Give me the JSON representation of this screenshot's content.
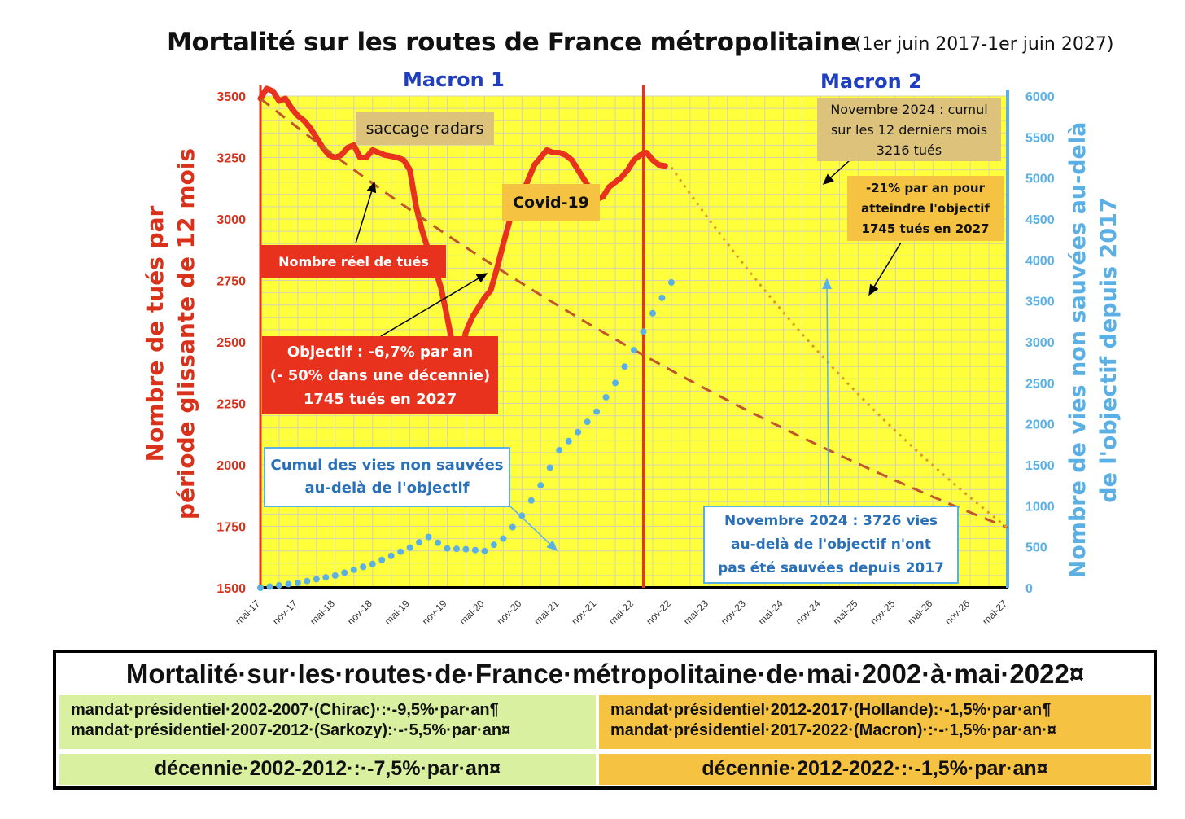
{
  "title": "Mortalité sur les routes de France métropolitaine",
  "subtitle": "(1er juin 2017-1er juin 2027)",
  "periods": [
    "Macron 1",
    "Macron 2"
  ],
  "colors": {
    "plot_bg": "#ffff3c",
    "actual": "#e8321e",
    "objective": "#c0562a",
    "cumulative": "#5ab0e4",
    "table_green": "#d8f0a0",
    "table_orange": "#f5c242"
  },
  "annotations": {
    "saccage": "saccage radars",
    "covid": "Covid-19",
    "nombre_reel": "Nombre réel de tués",
    "objectif": [
      "Objectif : -6,7% par an",
      "(- 50% dans une décennie)",
      "1745 tués en 2027"
    ],
    "nov2024_cumul": [
      "Novembre 2024 : cumul",
      "sur les 12 derniers mois",
      "3216 tués"
    ],
    "moins21": [
      "-21% par an pour",
      "atteindre l'objectif",
      "1745 tués en 2027"
    ],
    "cumul_label": [
      "Cumul des vies non sauvées",
      "au-delà de l'objectif"
    ],
    "nov2024_vies": [
      "Novembre 2024  : 3726 vies",
      "au-delà de l'objectif n'ont",
      "pas été sauvées depuis 2017"
    ]
  },
  "chart_data": {
    "type": "line",
    "x_tick_labels": [
      "mai-17",
      "nov-17",
      "mai-18",
      "nov-18",
      "mai-19",
      "nov-19",
      "mai-20",
      "nov-20",
      "mai-21",
      "nov-21",
      "mai-22",
      "nov-22",
      "mai-23",
      "nov-23",
      "mai-24",
      "nov-24",
      "mai-25",
      "nov-25",
      "mai-26",
      "nov-26",
      "mai-27"
    ],
    "ylabel_left": [
      "Nombre de tués par",
      "période glissante de 12 mois"
    ],
    "ylabel_right": [
      "Nombre de vies non sauvées  au-delà",
      "de l'objectif depuis 2017"
    ],
    "ylim_left": [
      1500,
      3500
    ],
    "y_ticks_left": [
      1500,
      1750,
      2000,
      2250,
      2500,
      2750,
      3000,
      3250,
      3500
    ],
    "ylim_right": [
      0,
      6000
    ],
    "y_ticks_right": [
      0,
      500,
      1000,
      1500,
      2000,
      2500,
      3000,
      3500,
      4000,
      4500,
      5000,
      5500,
      6000
    ],
    "grid": true,
    "x_unit": "months since mai-17",
    "series": [
      {
        "name": "Nombre réel de tués",
        "axis": "left",
        "style": "solid",
        "points": [
          [
            0,
            3490
          ],
          [
            1,
            3530
          ],
          [
            2,
            3520
          ],
          [
            3,
            3480
          ],
          [
            4,
            3490
          ],
          [
            5,
            3450
          ],
          [
            6,
            3420
          ],
          [
            7,
            3400
          ],
          [
            8,
            3370
          ],
          [
            9,
            3330
          ],
          [
            10,
            3290
          ],
          [
            11,
            3260
          ],
          [
            12,
            3250
          ],
          [
            13,
            3260
          ],
          [
            14,
            3290
          ],
          [
            15,
            3300
          ],
          [
            16,
            3250
          ],
          [
            17,
            3250
          ],
          [
            18,
            3280
          ],
          [
            19,
            3270
          ],
          [
            20,
            3260
          ],
          [
            21,
            3255
          ],
          [
            22,
            3250
          ],
          [
            23,
            3240
          ],
          [
            24,
            3200
          ],
          [
            25,
            3050
          ],
          [
            26,
            2950
          ],
          [
            27,
            2870
          ],
          [
            28,
            2800
          ],
          [
            29,
            2720
          ],
          [
            30,
            2600
          ],
          [
            31,
            2470
          ],
          [
            32,
            2440
          ],
          [
            33,
            2540
          ],
          [
            34,
            2600
          ],
          [
            35,
            2640
          ],
          [
            36,
            2680
          ],
          [
            37,
            2710
          ],
          [
            38,
            2800
          ],
          [
            39,
            2900
          ],
          [
            40,
            2990
          ],
          [
            41,
            3060
          ],
          [
            42,
            3100
          ],
          [
            43,
            3160
          ],
          [
            44,
            3220
          ],
          [
            45,
            3250
          ],
          [
            46,
            3280
          ],
          [
            47,
            3270
          ],
          [
            48,
            3270
          ],
          [
            49,
            3260
          ],
          [
            50,
            3240
          ],
          [
            51,
            3200
          ],
          [
            52,
            3160
          ],
          [
            53,
            3120
          ],
          [
            54,
            3080
          ],
          [
            55,
            3090
          ],
          [
            56,
            3130
          ],
          [
            57,
            3150
          ],
          [
            58,
            3170
          ],
          [
            59,
            3200
          ],
          [
            60,
            3240
          ],
          [
            61,
            3260
          ],
          [
            62,
            3270
          ],
          [
            63,
            3240
          ],
          [
            64,
            3220
          ],
          [
            65,
            3216
          ]
        ]
      },
      {
        "name": "Objectif : -6,7% par an",
        "axis": "left",
        "style": "dashed",
        "points": [
          [
            0,
            3490
          ],
          [
            120,
            1745
          ]
        ]
      },
      {
        "name": "-21% par an pour atteindre l'objectif",
        "axis": "left",
        "style": "dotted",
        "points": [
          [
            66,
            3210
          ],
          [
            120,
            1745
          ]
        ]
      },
      {
        "name": "Cumul des vies non sauvées au-delà de l'objectif",
        "axis": "right",
        "style": "dotted",
        "points": [
          [
            0,
            0
          ],
          [
            6,
            60
          ],
          [
            12,
            150
          ],
          [
            18,
            290
          ],
          [
            24,
            490
          ],
          [
            27,
            620
          ],
          [
            30,
            480
          ],
          [
            33,
            470
          ],
          [
            36,
            450
          ],
          [
            39,
            600
          ],
          [
            42,
            880
          ],
          [
            45,
            1250
          ],
          [
            48,
            1680
          ],
          [
            51,
            1900
          ],
          [
            54,
            2150
          ],
          [
            57,
            2500
          ],
          [
            60,
            2900
          ],
          [
            63,
            3350
          ],
          [
            66,
            3726
          ]
        ]
      }
    ]
  },
  "table": {
    "title": "Mortalité·sur·les·routes·de·France·métropolitaine·de·mai·2002·à·mai·2022¤",
    "left_lines": [
      "mandat·présidentiel·2002-2007·(Chirac)·:·-9,5%·par·an¶",
      "mandat·présidentiel·2007-2012·(Sarkozy):·-·5,5%·par·an¤"
    ],
    "right_lines": [
      "mandat·présidentiel·2012-2017·(Hollande):·-1,5%·par·an¶",
      "mandat·présidentiel·2017-2022·(Macron)·:·-·1,5%·par·an·¤"
    ],
    "decade_left": "décennie·2002-2012·:·-7,5%·par·an¤",
    "decade_right": "décennie·2012-2022·:·-1,5%·par·an¤"
  }
}
